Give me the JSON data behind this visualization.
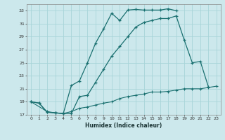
{
  "title": "",
  "xlabel": "Humidex (Indice chaleur)",
  "bg_color": "#cce8ec",
  "line_color": "#1a7070",
  "grid_color": "#a8d4d8",
  "xlim": [
    -0.5,
    23.5
  ],
  "ylim": [
    17,
    34
  ],
  "yticks": [
    17,
    19,
    21,
    23,
    25,
    27,
    29,
    31,
    33
  ],
  "xticks": [
    0,
    1,
    2,
    3,
    4,
    5,
    6,
    7,
    8,
    9,
    10,
    11,
    12,
    13,
    14,
    15,
    16,
    17,
    18,
    19,
    20,
    21,
    22,
    23
  ],
  "line1_x": [
    0,
    1,
    2,
    3,
    4,
    5,
    6,
    7,
    8,
    9,
    10,
    11,
    12,
    13,
    14,
    15,
    16,
    17,
    18
  ],
  "line1_y": [
    19,
    18.8,
    17.4,
    17.3,
    17.2,
    21.5,
    22.2,
    25.0,
    28.0,
    30.2,
    32.6,
    31.5,
    33.1,
    33.2,
    33.1,
    33.1,
    33.1,
    33.3,
    33.0
  ],
  "line2_x": [
    0,
    1,
    2,
    3,
    4,
    5,
    6,
    7,
    8,
    9,
    10,
    11,
    12,
    13,
    14,
    15,
    16,
    17,
    18,
    19,
    20,
    21,
    22
  ],
  "line2_y": [
    19,
    18.8,
    17.4,
    17.3,
    17.2,
    17.2,
    19.8,
    20.0,
    22.0,
    24.0,
    26.0,
    27.5,
    29.0,
    30.5,
    31.2,
    31.5,
    31.8,
    31.8,
    32.2,
    28.5,
    25.0,
    25.2,
    21.3
  ],
  "line3_x": [
    0,
    2,
    3,
    4,
    5,
    6,
    7,
    8,
    9,
    10,
    11,
    12,
    13,
    14,
    15,
    16,
    17,
    18,
    19,
    20,
    21,
    22,
    23
  ],
  "line3_y": [
    19,
    17.5,
    17.3,
    17.2,
    17.5,
    18.0,
    18.2,
    18.5,
    18.8,
    19.0,
    19.5,
    19.8,
    20.0,
    20.2,
    20.5,
    20.5,
    20.6,
    20.8,
    21.0,
    21.0,
    21.0,
    21.2,
    21.4
  ]
}
